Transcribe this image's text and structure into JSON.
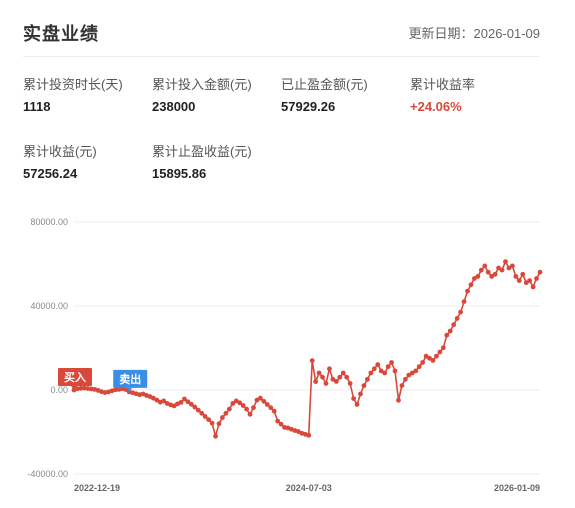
{
  "header": {
    "title": "实盘业绩",
    "update_label": "更新日期：",
    "update_date": "2026-01-09"
  },
  "stats": [
    {
      "label": "累计投资时长(天)",
      "value": "1118"
    },
    {
      "label": "累计投入金额(元)",
      "value": "238000"
    },
    {
      "label": "已止盈金额(元)",
      "value": "57929.26"
    },
    {
      "label": "累计收益率",
      "value": "+24.06%"
    },
    {
      "label": "累计收益(元)",
      "value": "57256.24"
    },
    {
      "label": "累计止盈收益(元)",
      "value": "15895.86"
    }
  ],
  "colors": {
    "line": "#d9483b",
    "buy_tag": "#d9483b",
    "sell_tag": "#3a8ee6",
    "gain_text": "#d9483b"
  },
  "chart_data": {
    "type": "line",
    "title": "",
    "xlabel": "",
    "ylabel": "",
    "ylim": [
      -40000,
      80000
    ],
    "yticks": [
      "80000.00",
      "40000.00",
      "0.00",
      "-40000.00"
    ],
    "ytick_values": [
      80000,
      40000,
      0,
      -40000
    ],
    "xtick_labels": [
      "2022-12-19",
      "2024-07-03",
      "2026-01-09"
    ],
    "grid": true,
    "markers": [
      {
        "label": "买入",
        "x_index": 0
      },
      {
        "label": "卖出",
        "x_index": 16
      }
    ],
    "series": [
      {
        "values": [
          0,
          600,
          800,
          900,
          700,
          500,
          300,
          -200,
          -800,
          -1200,
          -900,
          -400,
          100,
          300,
          600,
          200,
          -900,
          -1300,
          -1800,
          -2200,
          -1900,
          -2600,
          -3100,
          -3900,
          -4800,
          -5800,
          -5200,
          -6400,
          -7100,
          -7600,
          -6600,
          -5900,
          -4300,
          -5600,
          -6800,
          -8100,
          -9600,
          -11100,
          -12600,
          -14100,
          -15800,
          -22000,
          -16100,
          -13100,
          -11100,
          -9100,
          -6400,
          -5200,
          -6100,
          -7400,
          -9100,
          -11600,
          -8400,
          -4800,
          -3900,
          -5400,
          -6900,
          -8400,
          -10100,
          -14800,
          -16300,
          -17800,
          -18100,
          -18700,
          -19300,
          -19800,
          -20600,
          -21100,
          -21600,
          14000,
          4000,
          8100,
          6100,
          3100,
          10100,
          5100,
          4100,
          6100,
          8100,
          6100,
          3100,
          -4100,
          -6900,
          -1900,
          2100,
          5100,
          8100,
          10100,
          12100,
          9100,
          8100,
          11100,
          13100,
          9100,
          -4900,
          2100,
          5100,
          7100,
          8100,
          9100,
          11100,
          13100,
          16100,
          15100,
          14100,
          16100,
          18100,
          20100,
          26100,
          28100,
          31100,
          34100,
          37100,
          42100,
          47100,
          50100,
          53100,
          54100,
          57100,
          59100,
          56100,
          54100,
          55100,
          58100,
          57100,
          61100,
          58100,
          59100,
          54100,
          52100,
          55100,
          51100,
          52100,
          49100,
          53100,
          56100
        ]
      }
    ]
  }
}
